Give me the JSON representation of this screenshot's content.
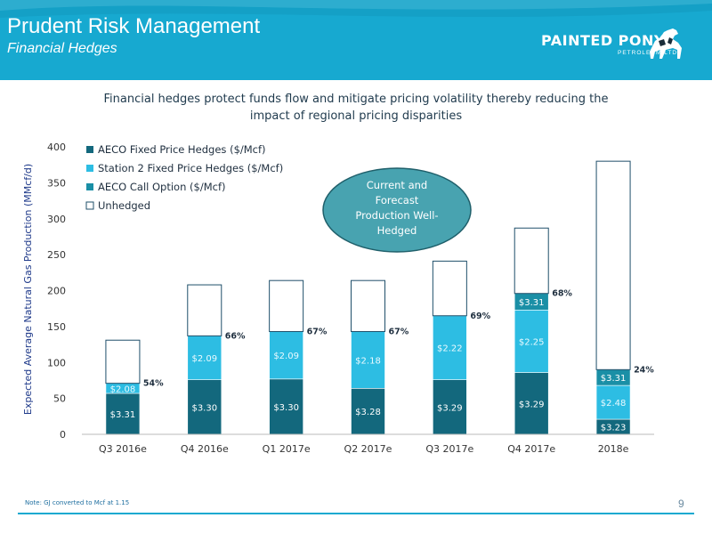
{
  "header": {
    "title": "Prudent Risk Management",
    "subtitle": "Financial Hedges",
    "logo_name": "PAINTED PONY",
    "logo_sub": "PETROLEUM LTD."
  },
  "headline": "Financial hedges protect funds flow and mitigate pricing volatility thereby reducing the impact of regional pricing disparities",
  "callout": "Current and Forecast Production Well-Hedged",
  "note": "Note: GJ converted to Mcf at 1.15",
  "page_number": "9",
  "colors": {
    "header": "#17a9d0",
    "aeco_fixed": "#13687d",
    "station2": "#2dbde3",
    "aeco_call": "#1a8fa6",
    "unhedged_border": "#1f4f6a",
    "callout_fill": "#48a3b0"
  },
  "chart_data": {
    "type": "bar",
    "stacked": true,
    "categories": [
      "Q3 2016e",
      "Q4 2016e",
      "Q1 2017e",
      "Q2 2017e",
      "Q3 2017e",
      "Q4 2017e",
      "2018e"
    ],
    "ylabel": "Expected Average Natural Gas Production (MMcf/d)",
    "ylim": [
      0,
      400
    ],
    "yticks": [
      0,
      50,
      100,
      150,
      200,
      250,
      300,
      350,
      400
    ],
    "grid": false,
    "legend_position": "top-left",
    "series": [
      {
        "name": "AECO Fixed Price Hedges ($/Mcf)",
        "values": [
          57,
          76,
          77,
          64,
          76,
          86,
          21
        ],
        "labels": [
          "$3.31",
          "$3.30",
          "$3.30",
          "$3.28",
          "$3.29",
          "$3.29",
          "$3.23"
        ]
      },
      {
        "name": "Station 2 Fixed Price Hedges ($/Mcf)",
        "values": [
          14,
          61,
          66,
          79,
          89,
          87,
          47
        ],
        "labels": [
          "$2.08",
          "$2.09",
          "$2.09",
          "$2.18",
          "$2.22",
          "$2.25",
          "$2.48"
        ]
      },
      {
        "name": "AECO Call Option ($/Mcf)",
        "values": [
          0,
          0,
          0,
          0,
          0,
          23,
          22
        ],
        "labels": [
          "",
          "",
          "",
          "",
          "",
          "$3.31",
          "$3.31"
        ]
      },
      {
        "name": "Unhedged",
        "values": [
          60,
          71,
          71,
          71,
          76,
          91,
          290
        ],
        "labels": [
          "",
          "",
          "",
          "",
          "",
          "",
          ""
        ]
      }
    ],
    "hedged_percent": [
      "54%",
      "66%",
      "67%",
      "67%",
      "69%",
      "68%",
      "24%"
    ]
  }
}
